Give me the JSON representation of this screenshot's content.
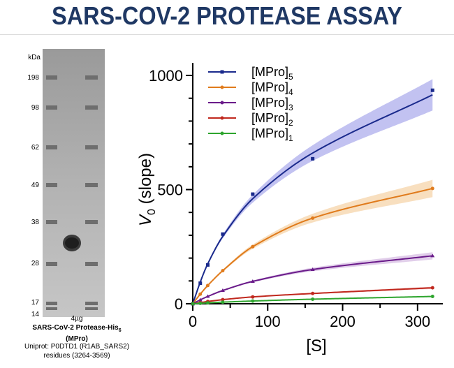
{
  "header": {
    "title": "SARS-COV-2 PROTEASE ASSAY"
  },
  "gel": {
    "unit_label": "kDa",
    "markers": [
      "198",
      "98",
      "62",
      "49",
      "38",
      "28",
      "17",
      "14"
    ],
    "lane_label": "4µg",
    "protein_name_main": "SARS-CoV-2  Protease-His",
    "protein_name_sub": "6",
    "protein_name_line2": "(MPro)",
    "uniprot_line1": "Uniprot: P0DTD1 (R1AB_SARS2)",
    "uniprot_line2": "residues (3264-3569)"
  },
  "chart_data": {
    "type": "scatter",
    "xlabel": "[S]",
    "ylabel_main": "V",
    "ylabel_sub": "0",
    "ylabel_rest": " (slope)",
    "xlim": [
      0,
      330
    ],
    "ylim": [
      0,
      1000
    ],
    "xticks": [
      0,
      100,
      200,
      300
    ],
    "yticks": [
      0,
      500,
      1000
    ],
    "legend_position": "top-left",
    "x": [
      0,
      10,
      20,
      40,
      80,
      160,
      320
    ],
    "series": [
      {
        "name": "[MPro]",
        "sub": "5",
        "color": "#1a2a8c",
        "band": "#8f8fe6",
        "marker": "square",
        "values": [
          0,
          90,
          170,
          305,
          480,
          635,
          935
        ],
        "fit": [
          0,
          95,
          175,
          295,
          460,
          660,
          915
        ]
      },
      {
        "name": "[MPro]",
        "sub": "4",
        "color": "#e07b1c",
        "band": "#f3c48a",
        "marker": "circle",
        "values": [
          0,
          42,
          80,
          145,
          250,
          375,
          505
        ],
        "fit": [
          0,
          42,
          80,
          145,
          250,
          375,
          505
        ]
      },
      {
        "name": "[MPro]",
        "sub": "3",
        "color": "#6a1b8a",
        "band": "#c9a5d8",
        "marker": "triangle",
        "values": [
          0,
          17,
          32,
          58,
          98,
          150,
          210
        ],
        "fit": [
          0,
          17,
          32,
          58,
          98,
          150,
          210
        ]
      },
      {
        "name": "[MPro]",
        "sub": "2",
        "color": "#c0281e",
        "band": "#eaa0a0",
        "marker": "circle",
        "values": [
          0,
          5,
          10,
          18,
          30,
          45,
          70
        ],
        "fit": [
          0,
          5,
          10,
          18,
          30,
          45,
          70
        ]
      },
      {
        "name": "[MPro]",
        "sub": "1",
        "color": "#2ea52e",
        "band": "#8fdc8f",
        "marker": "circle",
        "values": [
          0,
          2,
          4,
          7,
          12,
          20,
          32
        ],
        "fit": [
          0,
          2,
          4,
          7,
          12,
          20,
          32
        ]
      }
    ]
  }
}
